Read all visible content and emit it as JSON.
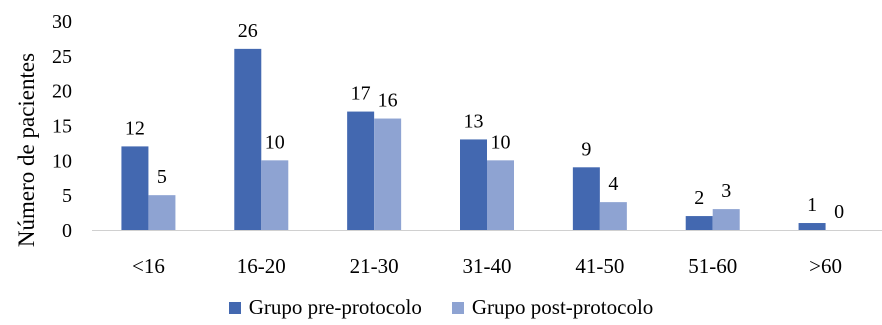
{
  "chart_data": {
    "type": "bar",
    "title": "",
    "xlabel": "",
    "ylabel": "Número de pacientes",
    "ylim": [
      0,
      30
    ],
    "yticks": [
      0,
      5,
      10,
      15,
      20,
      25,
      30
    ],
    "categories": [
      "<16",
      "16-20",
      "21-30",
      "31-40",
      "41-50",
      "51-60",
      ">60"
    ],
    "series": [
      {
        "name": "Grupo pre-protocolo",
        "color": "#4368b0",
        "values": [
          12,
          26,
          17,
          13,
          9,
          2,
          1
        ]
      },
      {
        "name": "Grupo post-protocolo",
        "color": "#8ea3d2",
        "values": [
          5,
          10,
          16,
          10,
          4,
          3,
          0
        ]
      }
    ],
    "grid": false,
    "legend_position": "bottom"
  }
}
